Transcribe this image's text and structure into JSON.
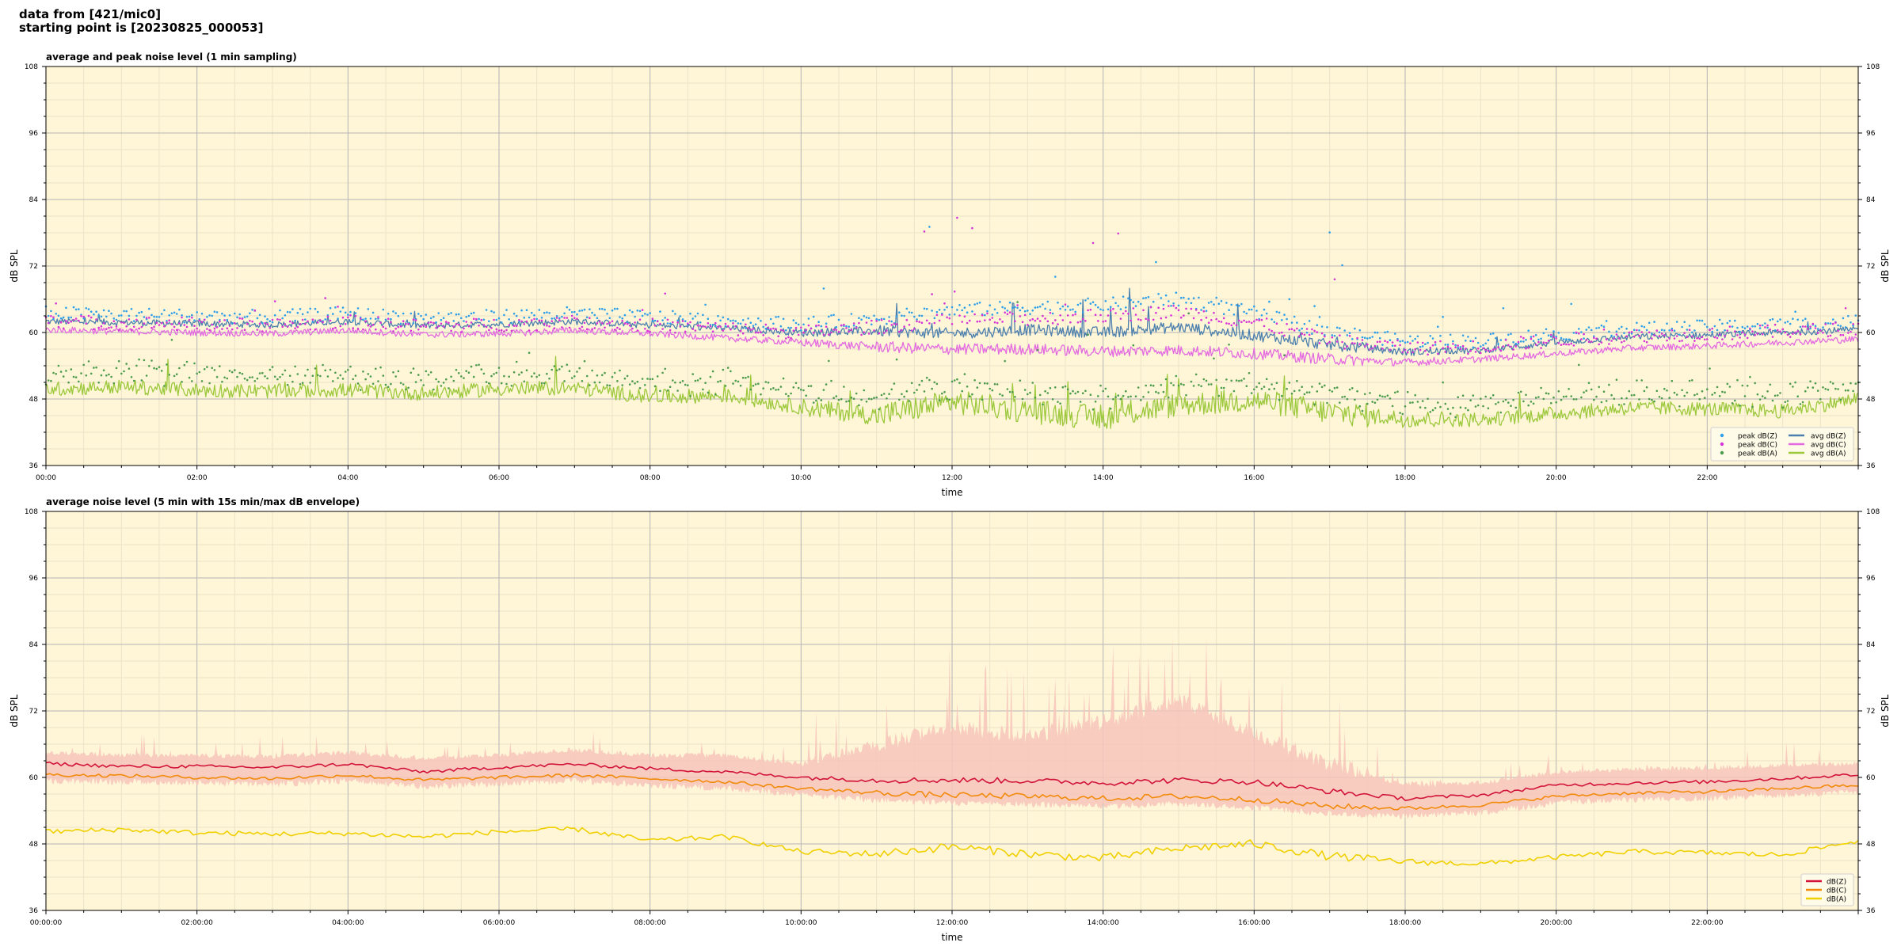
{
  "header": {
    "source_line": "data from [421/mic0]",
    "start_line": "starting point is [20230825_000053]"
  },
  "colors": {
    "plot_bg": "#fff6d8",
    "grid_major": "#b4b4b4",
    "grid_minor": "#ebe3c8",
    "avg_z": "#4b7fad",
    "avg_c": "#e36ae0",
    "avg_a": "#9cc83c",
    "peak_z": "#2f9fe8",
    "peak_c": "#d633d6",
    "peak_a": "#4d9b4d",
    "p2_z": "#d2143a",
    "p2_c": "#f28b0c",
    "p2_a": "#f0d000",
    "envelope": "#f7c4ba"
  },
  "chart_data": [
    {
      "type": "line",
      "title": "average and peak noise level (1 min sampling)",
      "xlabel": "time",
      "ylabel": "dB SPL",
      "xlim_hours": [
        0,
        24
      ],
      "ylim": [
        36,
        108
      ],
      "yticks": [
        36,
        48,
        60,
        72,
        84,
        96,
        108
      ],
      "xtick_labels": [
        "00:00",
        "02:00",
        "04:00",
        "06:00",
        "08:00",
        "10:00",
        "12:00",
        "14:00",
        "16:00",
        "18:00",
        "20:00",
        "22:00"
      ],
      "grid": true,
      "legend_position": "bottom-right",
      "legend": [
        "peak dB(Z)",
        "peak dB(C)",
        "peak dB(A)",
        "avg dB(Z)",
        "avg dB(C)",
        "avg dB(A)"
      ],
      "x_hours": [
        0,
        1,
        2,
        3,
        4,
        5,
        6,
        7,
        8,
        9,
        10,
        11,
        12,
        13,
        14,
        15,
        16,
        17,
        18,
        19,
        20,
        21,
        22,
        23,
        24
      ],
      "series": [
        {
          "name": "avg dB(Z)",
          "kind": "line",
          "values": [
            62,
            61.8,
            61.6,
            61.4,
            62,
            61.2,
            61.5,
            62,
            61.3,
            60.8,
            60,
            60.3,
            59.8,
            60.5,
            60,
            61,
            59.5,
            57.8,
            56.5,
            56.8,
            58.2,
            59.2,
            59.5,
            60,
            60.5
          ]
        },
        {
          "name": "avg dB(C)",
          "kind": "line",
          "values": [
            60.5,
            60.2,
            60,
            59.8,
            60.4,
            59.6,
            59.8,
            60.4,
            59.8,
            59,
            58.2,
            57.4,
            57,
            57,
            56.6,
            56.8,
            56.2,
            55.2,
            54.6,
            55.2,
            56.2,
            57.2,
            57.6,
            58.2,
            58.8
          ]
        },
        {
          "name": "avg dB(A)",
          "kind": "line",
          "values": [
            49.8,
            50.2,
            49.6,
            49.4,
            49.6,
            49,
            49.8,
            50,
            48.4,
            48.6,
            46.5,
            45,
            47.5,
            45.8,
            44.6,
            47,
            47.8,
            45.6,
            44.4,
            44.2,
            45.4,
            46.4,
            46.2,
            45.8,
            48
          ]
        },
        {
          "name": "peak dB(Z)",
          "kind": "scatter",
          "values": [
            63.5,
            63.2,
            63,
            62.8,
            63.4,
            62.6,
            62.9,
            63.4,
            62.8,
            62.2,
            61.5,
            62.5,
            64,
            64.5,
            65,
            66,
            63.5,
            60.2,
            58.5,
            58.5,
            59.8,
            60.6,
            61,
            61.4,
            62
          ]
        },
        {
          "name": "peak dB(C)",
          "kind": "scatter",
          "values": [
            62,
            61.7,
            61.5,
            61.3,
            61.9,
            61.1,
            61.4,
            61.9,
            61.3,
            60.7,
            60,
            61,
            62.2,
            62.5,
            63,
            63.8,
            61.8,
            58.6,
            57.2,
            57.4,
            58.6,
            59.4,
            59.8,
            60.2,
            60.8
          ]
        },
        {
          "name": "peak dB(A)",
          "kind": "scatter",
          "values": [
            52.5,
            52.8,
            52.3,
            52,
            52.2,
            51.6,
            52.4,
            52.5,
            51,
            51.2,
            49.5,
            48.5,
            50.5,
            49.5,
            48.5,
            50.5,
            51,
            48.8,
            47.5,
            47.2,
            48.4,
            49.4,
            49.2,
            48.8,
            50.6
          ]
        }
      ]
    },
    {
      "type": "line",
      "title": "average noise level (5 min with 15s min/max dB envelope)",
      "xlabel": "time",
      "ylabel": "dB SPL",
      "xlim_hours": [
        0,
        24
      ],
      "ylim": [
        36,
        108
      ],
      "yticks": [
        36,
        48,
        60,
        72,
        84,
        96,
        108
      ],
      "xtick_labels": [
        "00:00:00",
        "02:00:00",
        "04:00:00",
        "06:00:00",
        "08:00:00",
        "10:00:00",
        "12:00:00",
        "14:00:00",
        "16:00:00",
        "18:00:00",
        "20:00:00",
        "22:00:00"
      ],
      "grid": true,
      "legend_position": "bottom-right",
      "legend": [
        "dB(Z)",
        "dB(C)",
        "dB(A)"
      ],
      "x_hours": [
        0,
        1,
        2,
        3,
        4,
        5,
        6,
        7,
        8,
        9,
        10,
        11,
        12,
        13,
        14,
        15,
        16,
        17,
        18,
        19,
        20,
        21,
        22,
        23,
        24
      ],
      "series": [
        {
          "name": "dB(Z)",
          "kind": "line",
          "values": [
            62.5,
            62,
            62,
            61.8,
            62.4,
            61,
            61.8,
            62.4,
            61.6,
            61,
            60,
            59.5,
            59.5,
            59.4,
            59,
            59.5,
            59.2,
            57.5,
            56.2,
            56.8,
            58.6,
            59,
            59.2,
            59.8,
            60.5
          ]
        },
        {
          "name": "dB(C)",
          "kind": "line",
          "values": [
            60.5,
            60.3,
            60,
            59.8,
            60.4,
            59.5,
            60,
            60.4,
            59.8,
            59.2,
            58,
            57.2,
            56.8,
            56.6,
            56.2,
            56.6,
            56,
            54.8,
            54.4,
            55,
            56.6,
            57.2,
            57.4,
            58,
            58.6
          ]
        },
        {
          "name": "dB(A)",
          "kind": "line",
          "values": [
            50.2,
            50.6,
            50,
            49.8,
            49.9,
            49.3,
            50.2,
            50.7,
            48.6,
            49.3,
            46.6,
            46.2,
            47.5,
            46.2,
            45.4,
            47.2,
            48,
            45.8,
            44.8,
            44.4,
            45.6,
            46.6,
            46.4,
            46,
            48.6
          ]
        },
        {
          "name": "envelope max",
          "kind": "area_upper",
          "values": [
            64.5,
            64,
            64,
            63.8,
            64.5,
            63.5,
            64,
            65,
            64,
            64,
            62.5,
            66,
            69,
            67.5,
            70,
            74,
            68,
            62.5,
            59,
            59,
            61,
            61.5,
            61.8,
            62.2,
            62.5
          ]
        },
        {
          "name": "envelope min",
          "kind": "area_lower",
          "values": [
            60,
            59.8,
            59.6,
            59.4,
            60,
            59,
            59.4,
            60,
            59.2,
            58.6,
            57.5,
            56.5,
            56,
            55.8,
            55.4,
            55.8,
            55.2,
            54,
            53.6,
            54.2,
            56,
            56.6,
            56.8,
            57.4,
            58
          ]
        }
      ]
    }
  ]
}
